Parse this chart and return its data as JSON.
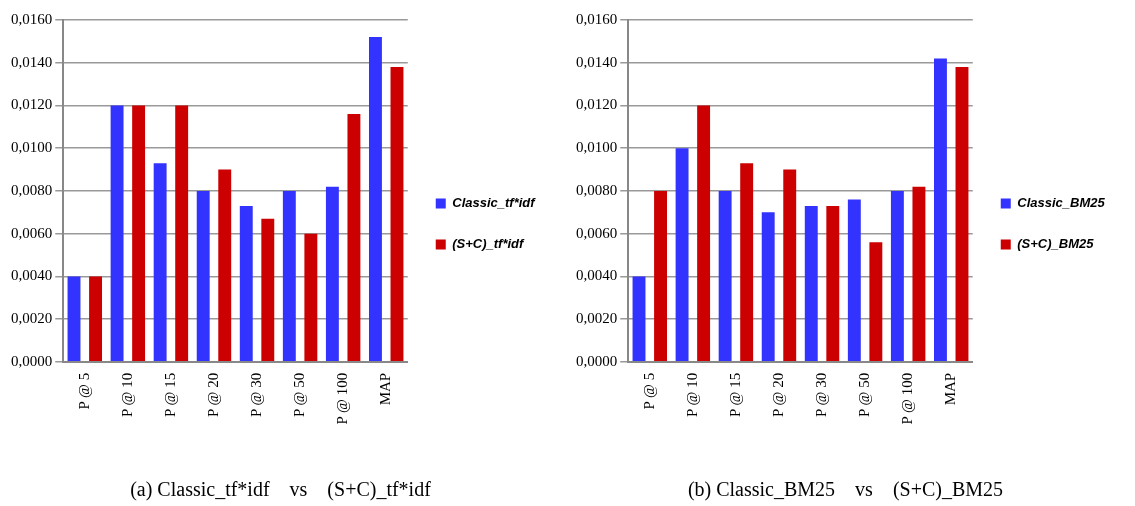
{
  "chart_data": [
    {
      "type": "bar",
      "categories": [
        "P @ 5",
        "P @ 10",
        "P @ 15",
        "P @ 20",
        "P @ 30",
        "P @ 50",
        "P @ 100",
        "MAP"
      ],
      "series": [
        {
          "name": "Classic_tf*idf",
          "color": "#3333ff",
          "values": [
            0.004,
            0.012,
            0.0093,
            0.008,
            0.0073,
            0.008,
            0.0082,
            0.0152
          ]
        },
        {
          "name": "(S+C)_tf*idf",
          "color": "#cc0000",
          "values": [
            0.004,
            0.012,
            0.012,
            0.009,
            0.0067,
            0.006,
            0.0116,
            0.0138
          ]
        }
      ],
      "ylim": [
        0,
        0.016
      ],
      "yticks": [
        {
          "value": 0,
          "label": "0,0000"
        },
        {
          "value": 0.002,
          "label": "0,0020"
        },
        {
          "value": 0.004,
          "label": "0,0040"
        },
        {
          "value": 0.006,
          "label": "0,0060"
        },
        {
          "value": 0.008,
          "label": "0,0080"
        },
        {
          "value": 0.01,
          "label": "0,0100"
        },
        {
          "value": 0.012,
          "label": "0,0120"
        },
        {
          "value": 0.014,
          "label": "0,0140"
        },
        {
          "value": 0.016,
          "label": "0,0160"
        }
      ],
      "grid": "y",
      "legend": "right",
      "annotations": [
        "(a) Classic_tf*idf    vs    (S+C)_tf*idf"
      ]
    },
    {
      "type": "bar",
      "categories": [
        "P @ 5",
        "P @ 10",
        "P @ 15",
        "P @ 20",
        "P @ 30",
        "P @ 50",
        "P @ 100",
        "MAP"
      ],
      "series": [
        {
          "name": "Classic_BM25",
          "color": "#3333ff",
          "values": [
            0.004,
            0.01,
            0.008,
            0.007,
            0.0073,
            0.0076,
            0.008,
            0.0142
          ]
        },
        {
          "name": "(S+C)_BM25",
          "color": "#cc0000",
          "values": [
            0.008,
            0.012,
            0.0093,
            0.009,
            0.0073,
            0.0056,
            0.0082,
            0.0138
          ]
        }
      ],
      "ylim": [
        0,
        0.016
      ],
      "yticks": [
        {
          "value": 0,
          "label": "0,0000"
        },
        {
          "value": 0.002,
          "label": "0,0020"
        },
        {
          "value": 0.004,
          "label": "0,0040"
        },
        {
          "value": 0.006,
          "label": "0,0060"
        },
        {
          "value": 0.008,
          "label": "0,0080"
        },
        {
          "value": 0.01,
          "label": "0,0100"
        },
        {
          "value": 0.012,
          "label": "0,0120"
        },
        {
          "value": 0.014,
          "label": "0,0140"
        },
        {
          "value": 0.016,
          "label": "0,0160"
        }
      ],
      "grid": "y",
      "legend": "right",
      "annotations": [
        "(b) Classic_BM25    vs    (S+C)_BM25"
      ]
    }
  ]
}
